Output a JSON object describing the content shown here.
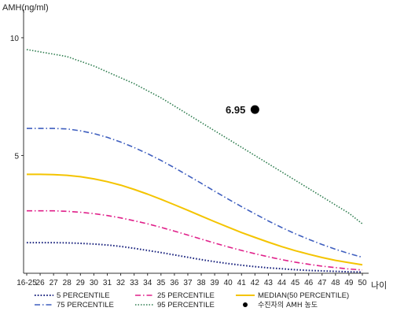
{
  "chart_data": {
    "type": "line",
    "ylabel": "AMH(ng/ml)",
    "xlabel": "나이",
    "categories": [
      "16-25",
      "26",
      "27",
      "28",
      "29",
      "30",
      "31",
      "32",
      "33",
      "34",
      "35",
      "36",
      "37",
      "38",
      "39",
      "40",
      "41",
      "42",
      "43",
      "44",
      "45",
      "46",
      "47",
      "48",
      "49",
      "50"
    ],
    "y_ticks": [
      5,
      10
    ],
    "ylim": [
      0,
      11
    ],
    "series": [
      {
        "name": "5 PERCENTILE",
        "color": "#1a237e",
        "dash": "1.6,2.2",
        "width": 2,
        "values": [
          1.3,
          1.3,
          1.3,
          1.29,
          1.27,
          1.24,
          1.2,
          1.14,
          1.06,
          0.97,
          0.88,
          0.78,
          0.68,
          0.58,
          0.49,
          0.41,
          0.34,
          0.28,
          0.23,
          0.19,
          0.15,
          0.12,
          0.1,
          0.08,
          0.06,
          0.05
        ]
      },
      {
        "name": "25 PERCENTILE",
        "color": "#e0208a",
        "dash": "7,3,1.5,3",
        "width": 1.6,
        "values": [
          2.65,
          2.65,
          2.65,
          2.63,
          2.59,
          2.53,
          2.45,
          2.35,
          2.23,
          2.1,
          1.95,
          1.79,
          1.62,
          1.45,
          1.28,
          1.12,
          0.97,
          0.83,
          0.7,
          0.58,
          0.47,
          0.38,
          0.3,
          0.24,
          0.18,
          0.14
        ]
      },
      {
        "name": "MEDIAN(50 PERCENTILE)",
        "color": "#f4c400",
        "dash": "",
        "width": 2,
        "values": [
          4.2,
          4.2,
          4.19,
          4.16,
          4.1,
          4.01,
          3.89,
          3.74,
          3.56,
          3.36,
          3.14,
          2.91,
          2.67,
          2.43,
          2.19,
          1.96,
          1.73,
          1.52,
          1.32,
          1.13,
          0.96,
          0.81,
          0.67,
          0.55,
          0.45,
          0.36
        ]
      },
      {
        "name": "75 PERCENTILE",
        "color": "#3f5fbf",
        "dash": "7,3,1.5,3",
        "width": 1.6,
        "values": [
          6.15,
          6.15,
          6.15,
          6.13,
          6.05,
          5.93,
          5.77,
          5.57,
          5.34,
          5.08,
          4.79,
          4.48,
          4.15,
          3.82,
          3.48,
          3.15,
          2.83,
          2.52,
          2.22,
          1.94,
          1.68,
          1.44,
          1.22,
          1.02,
          0.84,
          0.68
        ]
      },
      {
        "name": "95 PERCENTILE",
        "color": "#2e7d4f",
        "dash": "1.5,2",
        "width": 1.6,
        "values": [
          9.5,
          9.4,
          9.3,
          9.2,
          9.0,
          8.8,
          8.55,
          8.3,
          8.05,
          7.75,
          7.45,
          7.1,
          6.75,
          6.4,
          6.05,
          5.7,
          5.35,
          5.0,
          4.65,
          4.3,
          3.95,
          3.6,
          3.25,
          2.9,
          2.55,
          2.1
        ]
      }
    ],
    "points": [
      {
        "name": "수진자의 AMH 농도",
        "x": "42",
        "y": 6.95,
        "label": "6.95",
        "color": "#000000"
      }
    ],
    "legend": {
      "position": "bottom",
      "items": [
        "5 PERCENTILE",
        "25 PERCENTILE",
        "MEDIAN(50 PERCENTILE)",
        "75 PERCENTILE",
        "95 PERCENTILE",
        "수진자의 AMH 농도"
      ]
    }
  }
}
